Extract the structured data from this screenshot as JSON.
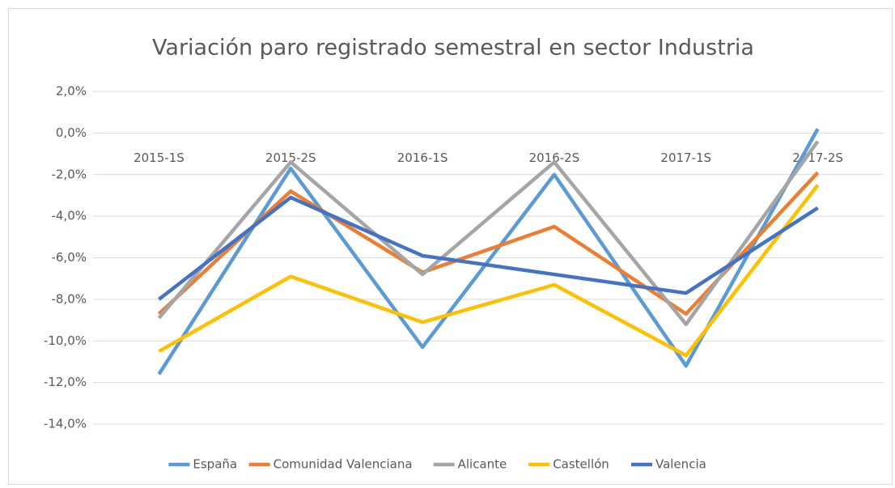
{
  "chart_data": {
    "type": "line",
    "title": "Variación paro registrado semestral en sector Industria",
    "categories": [
      "2015-1S",
      "2015-2S",
      "2016-1S",
      "2016-2S",
      "2017-1S",
      "2017-2S"
    ],
    "series": [
      {
        "name": "España",
        "color": "#5b9bd5",
        "values": [
          -11.6,
          -1.7,
          -10.3,
          -2.0,
          -11.2,
          0.2
        ]
      },
      {
        "name": "Comunidad Valenciana",
        "color": "#ed7d31",
        "values": [
          -8.7,
          -2.8,
          -6.7,
          -4.5,
          -8.7,
          -1.9
        ]
      },
      {
        "name": "Alicante",
        "color": "#a5a5a5",
        "values": [
          -8.9,
          -1.4,
          -6.8,
          -1.4,
          -9.2,
          -0.4
        ]
      },
      {
        "name": "Castellón",
        "color": "#ffc000",
        "values": [
          -10.5,
          -6.9,
          -9.1,
          -7.3,
          -10.7,
          -2.5
        ]
      },
      {
        "name": "Valencia",
        "color": "#4472c4",
        "values": [
          -8.0,
          -3.1,
          -5.9,
          -6.8,
          -7.7,
          -3.6
        ]
      }
    ],
    "ylim": [
      -14,
      2
    ],
    "yticks": [
      {
        "value": -14,
        "label": "-14,0%"
      },
      {
        "value": -12,
        "label": "-12,0%"
      },
      {
        "value": -10,
        "label": "-10,0%"
      },
      {
        "value": -8,
        "label": "-8,0%"
      },
      {
        "value": -6,
        "label": "-6,0%"
      },
      {
        "value": -4,
        "label": "-4,0%"
      },
      {
        "value": -2,
        "label": "-2,0%"
      },
      {
        "value": 0,
        "label": "0,0%"
      },
      {
        "value": 2,
        "label": "2,0%"
      }
    ],
    "grid": true,
    "legend": "bottom"
  }
}
